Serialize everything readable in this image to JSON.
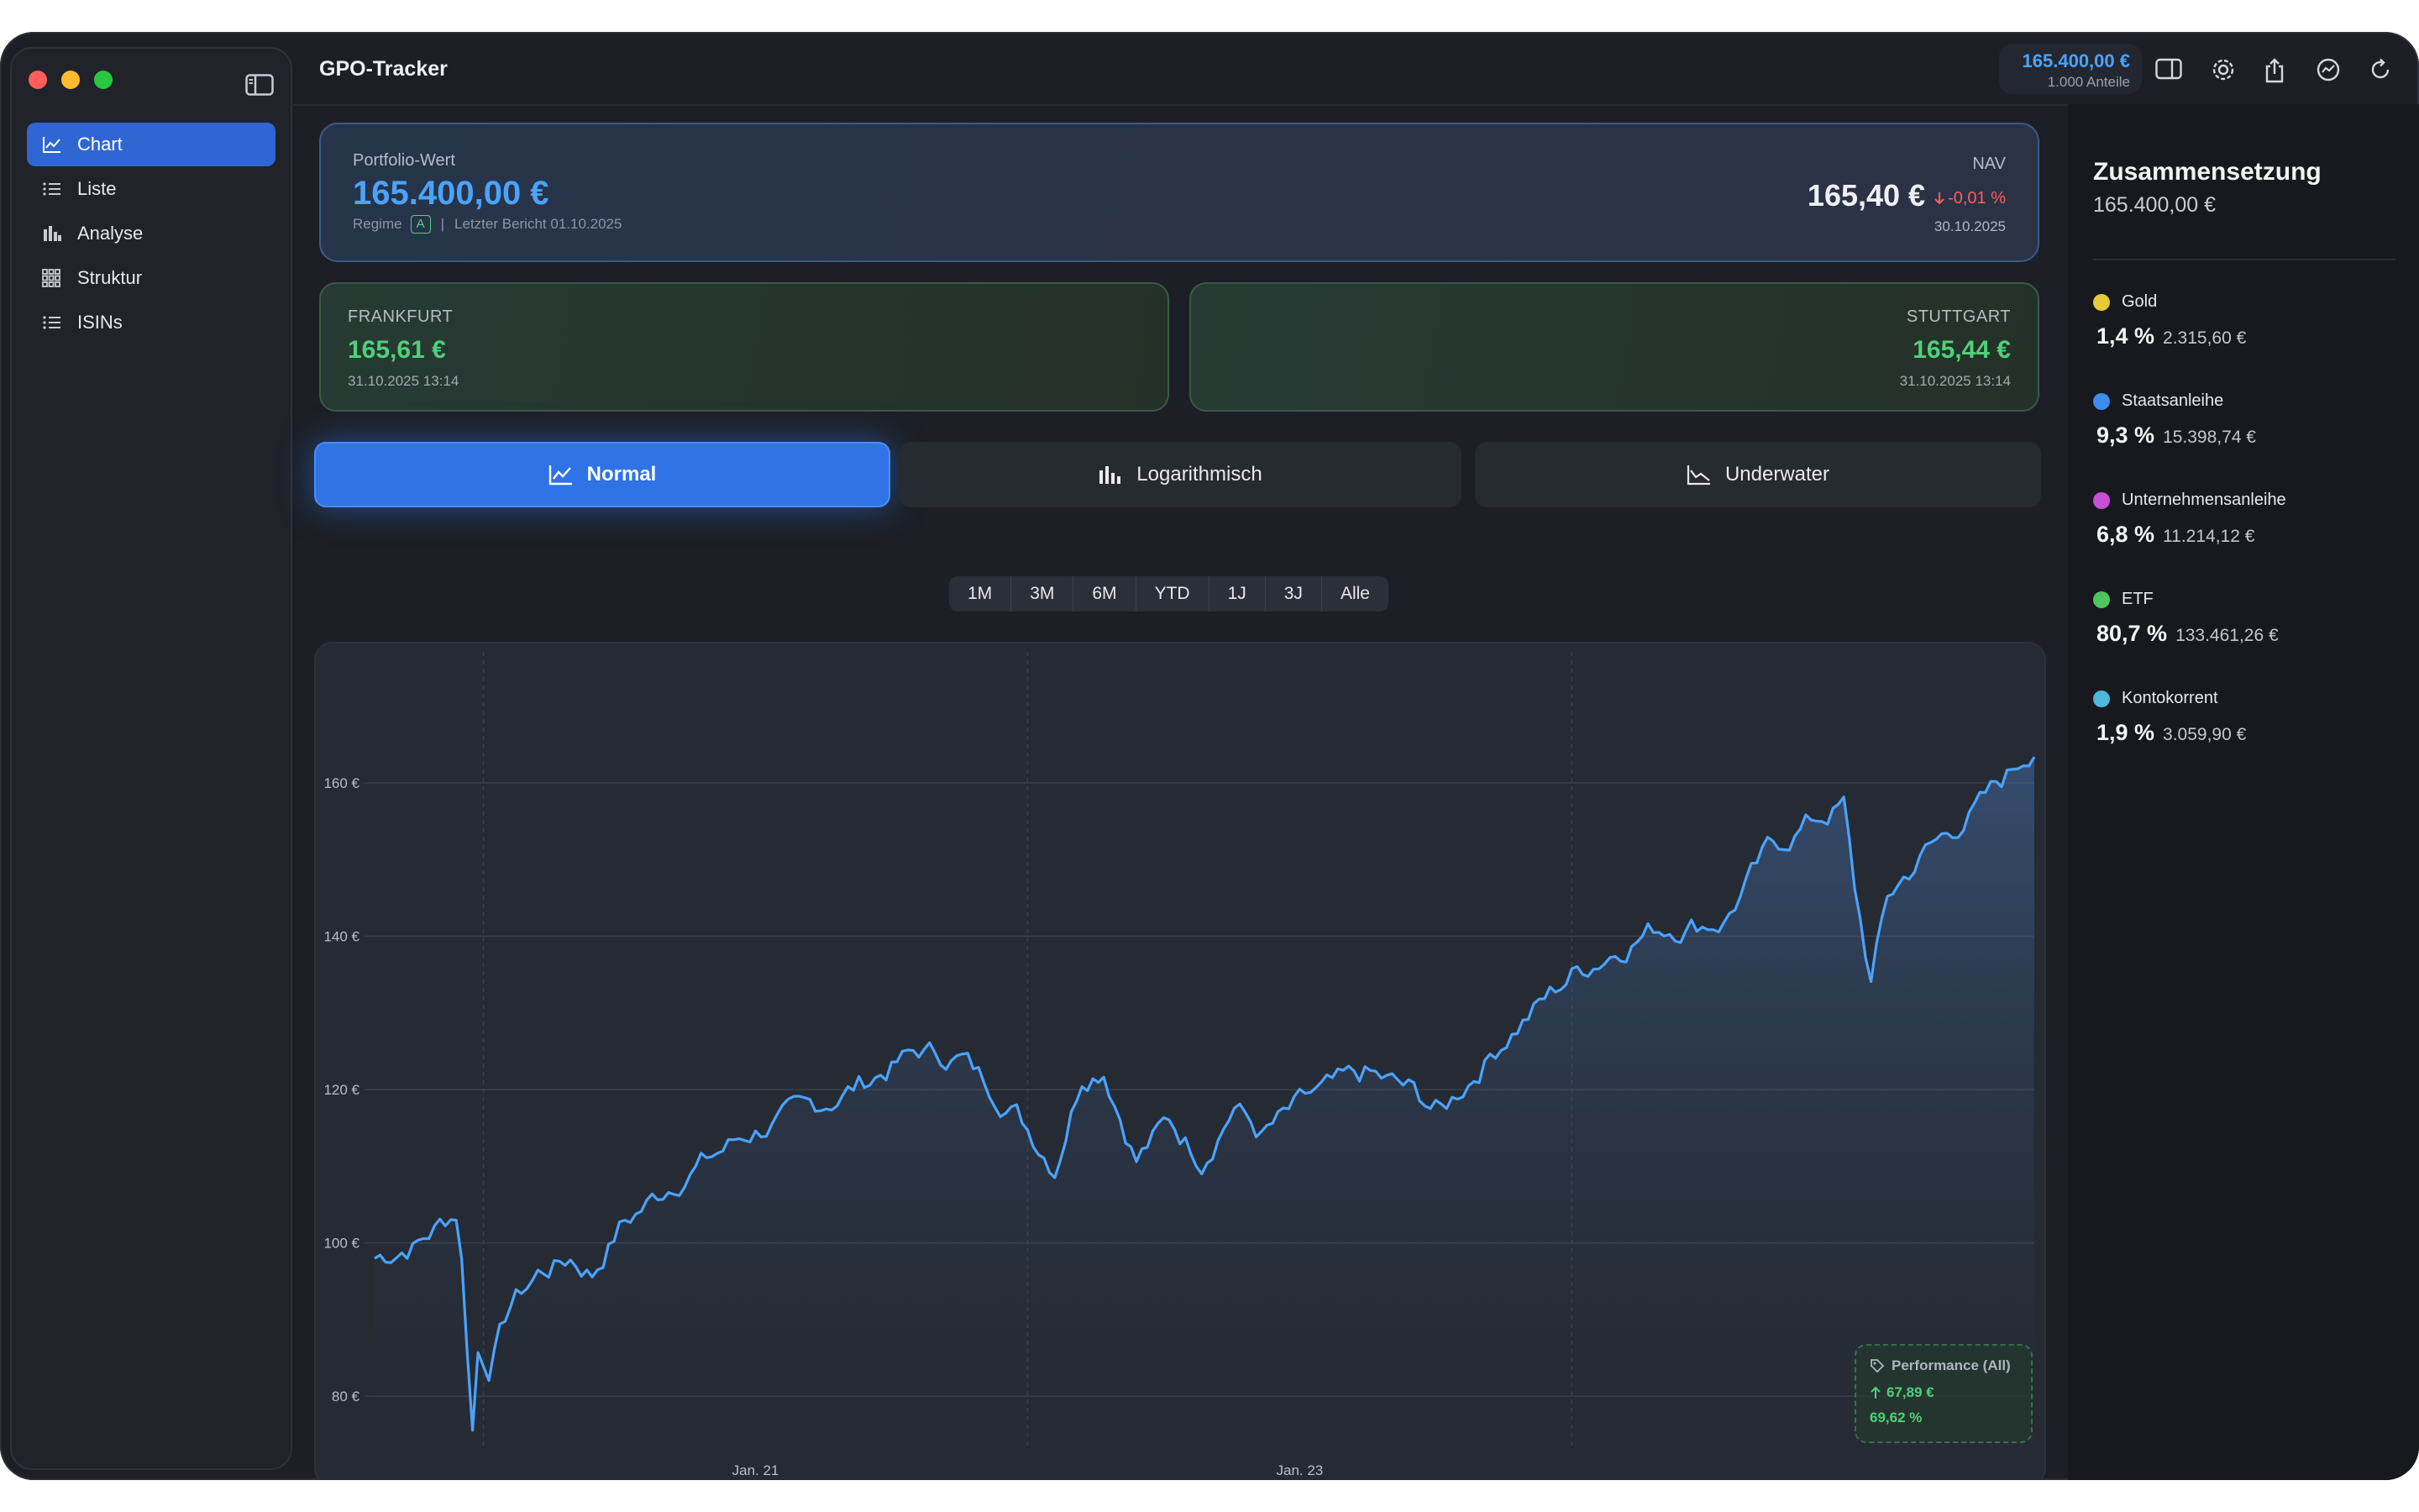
{
  "app": {
    "title": "GPO-Tracker"
  },
  "sidebar": {
    "items": [
      {
        "label": "Chart",
        "icon": "line-chart-icon",
        "active": true
      },
      {
        "label": "Liste",
        "icon": "list-icon",
        "active": false
      },
      {
        "label": "Analyse",
        "icon": "bar-chart-icon",
        "active": false
      },
      {
        "label": "Struktur",
        "icon": "grid-icon",
        "active": false
      },
      {
        "label": "ISINs",
        "icon": "list-icon",
        "active": false
      }
    ]
  },
  "toolbar": {
    "value": "165.400,00 €",
    "shares": "1.000 Anteile",
    "icons": [
      "inspector-icon",
      "settings-icon",
      "share-icon",
      "chart-badge-icon",
      "refresh-icon"
    ]
  },
  "portfolio": {
    "label": "Portfolio-Wert",
    "value": "165.400,00 €",
    "regime_label": "Regime",
    "regime_value": "A",
    "separator": "|",
    "report": "Letzter Bericht 01.10.2025",
    "nav_label": "NAV",
    "nav_value": "165,40 €",
    "nav_change": "-0,01 %",
    "nav_date": "30.10.2025"
  },
  "exchanges": [
    {
      "name": "FRANKFURT",
      "price": "165,61 €",
      "time": "31.10.2025 13:14"
    },
    {
      "name": "STUTTGART",
      "price": "165,44 €",
      "time": "31.10.2025 13:14"
    }
  ],
  "modes": [
    {
      "label": "Normal",
      "active": true
    },
    {
      "label": "Logarithmisch",
      "active": false
    },
    {
      "label": "Underwater",
      "active": false
    }
  ],
  "ranges": [
    "1M",
    "3M",
    "6M",
    "YTD",
    "1J",
    "3J",
    "Alle"
  ],
  "performance": {
    "title": "Performance (All)",
    "abs": "67,89 €",
    "pct": "69,62 %"
  },
  "colors": {
    "accent": "#2f73e6",
    "line": "#4aa3ff",
    "positive": "#4fd07a",
    "negative": "#ff5d5d"
  },
  "chart_data": {
    "type": "line",
    "ylim": [
      73,
      176
    ],
    "yticks": [
      80,
      100,
      120,
      140,
      160
    ],
    "ytick_labels": [
      "80 €",
      "100 €",
      "120 €",
      "140 €",
      "160 €"
    ],
    "xticks": [
      {
        "label": "Jan. 21",
        "index": 70
      },
      {
        "label": "Jan. 23",
        "index": 170
      }
    ],
    "x_grid_indices": [
      20,
      120,
      220
    ],
    "grid": true,
    "anchors": [
      [
        0,
        98
      ],
      [
        8,
        100
      ],
      [
        13,
        103
      ],
      [
        15,
        104
      ],
      [
        16,
        98
      ],
      [
        18,
        76
      ],
      [
        19,
        86
      ],
      [
        21,
        84
      ],
      [
        25,
        92
      ],
      [
        30,
        96
      ],
      [
        36,
        98
      ],
      [
        40,
        96
      ],
      [
        45,
        102
      ],
      [
        55,
        108
      ],
      [
        68,
        114
      ],
      [
        85,
        119
      ],
      [
        100,
        125
      ],
      [
        108,
        124
      ],
      [
        118,
        117
      ],
      [
        125,
        110
      ],
      [
        130,
        122
      ],
      [
        134,
        123
      ],
      [
        140,
        111
      ],
      [
        146,
        116
      ],
      [
        152,
        111
      ],
      [
        158,
        118
      ],
      [
        163,
        114
      ],
      [
        172,
        119
      ],
      [
        182,
        122
      ],
      [
        190,
        120
      ],
      [
        196,
        117
      ],
      [
        208,
        127
      ],
      [
        220,
        135
      ],
      [
        235,
        141
      ],
      [
        248,
        142
      ],
      [
        256,
        151
      ],
      [
        264,
        155
      ],
      [
        270,
        157
      ],
      [
        272,
        146
      ],
      [
        275,
        134
      ],
      [
        278,
        145
      ],
      [
        285,
        151
      ],
      [
        295,
        157
      ],
      [
        305,
        165
      ]
    ],
    "noise_amplitude": 1.3,
    "points": 306
  }
}
